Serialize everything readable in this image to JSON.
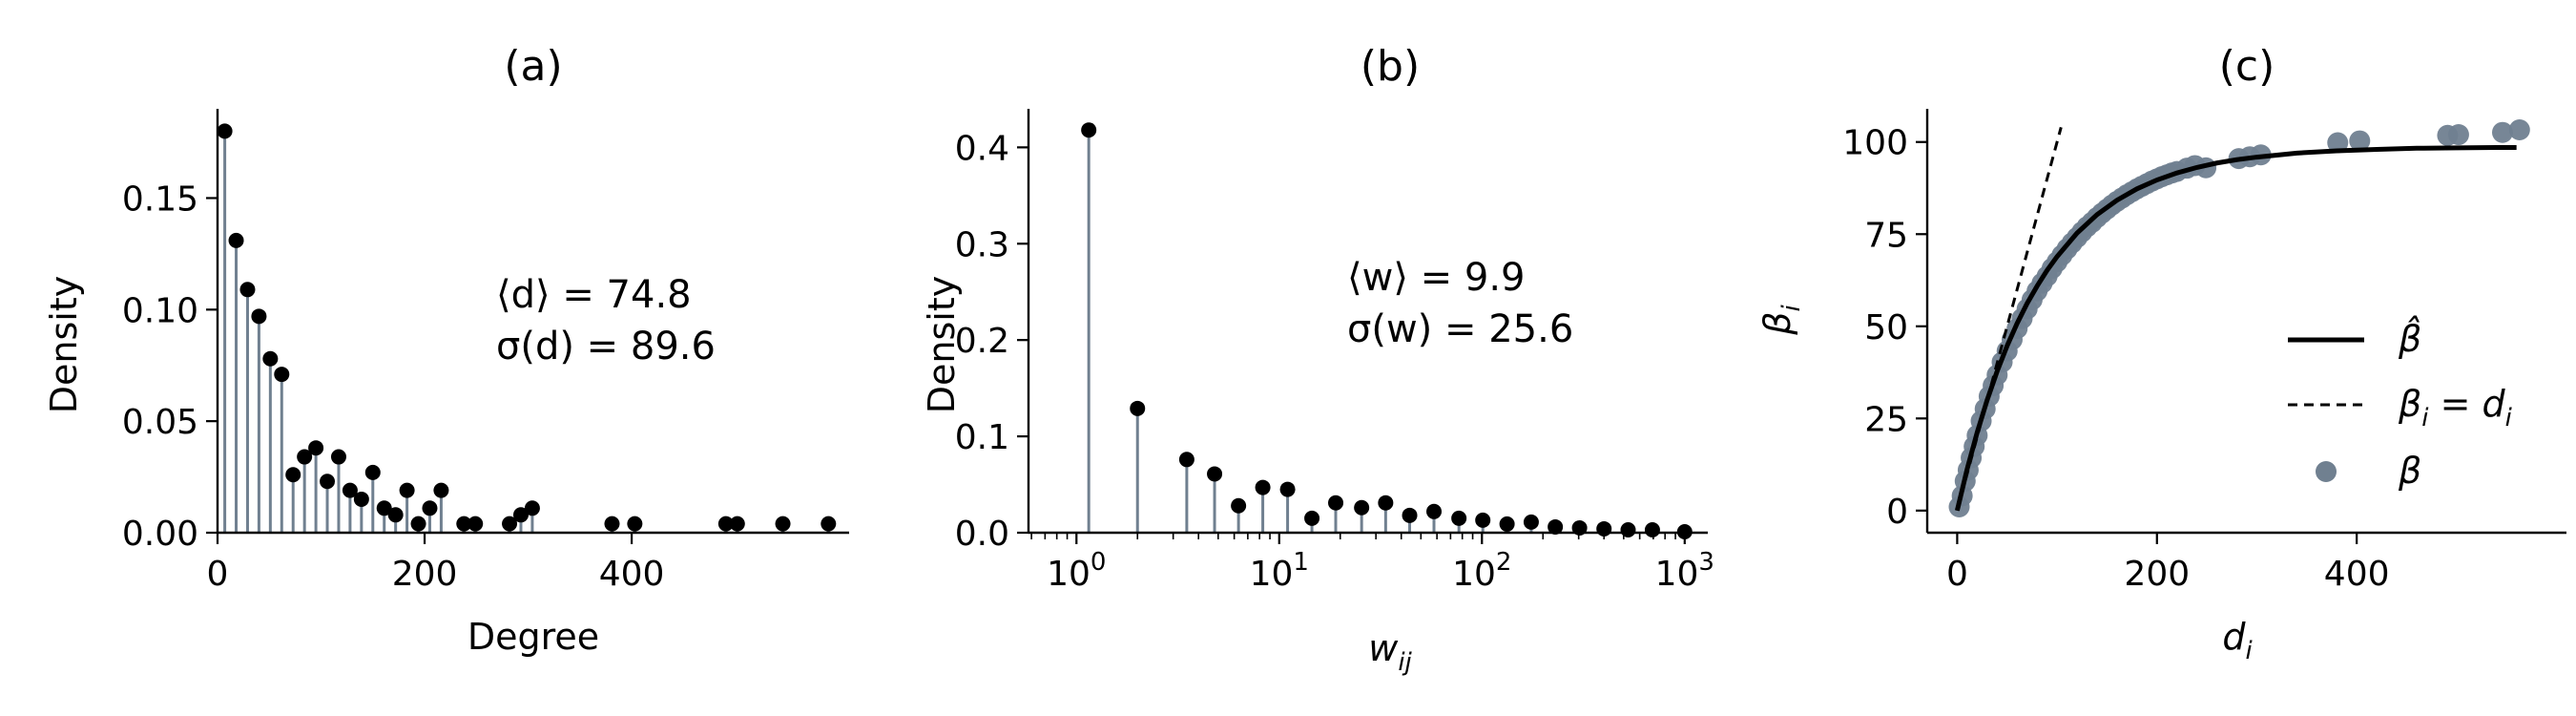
{
  "colors": {
    "stem": "#708090",
    "marker": "#000000",
    "scatter": "#708090",
    "fit_line": "#000000"
  },
  "chart_data": [
    {
      "type": "stem",
      "title": "(a)",
      "xlabel": "Degree",
      "ylabel": "Density",
      "xlim": [
        0,
        610
      ],
      "ylim": [
        0,
        0.19
      ],
      "xticks": [
        0,
        200,
        400
      ],
      "xtick_labels": [
        "0",
        "200",
        "400"
      ],
      "yticks": [
        0.0,
        0.05,
        0.1,
        0.15
      ],
      "ytick_labels": [
        "0.00",
        "0.05",
        "0.10",
        "0.15"
      ],
      "annotations": [
        "⟨d⟩ = 74.8",
        "σ(d) = 89.6"
      ],
      "x": [
        7,
        18,
        29,
        40,
        51,
        62,
        73,
        84,
        95,
        106,
        117,
        128,
        139,
        150,
        161,
        172,
        183,
        194,
        205,
        216,
        238,
        249,
        282,
        293,
        304,
        381,
        403,
        491,
        502,
        546,
        590
      ],
      "y": [
        0.18,
        0.131,
        0.109,
        0.097,
        0.078,
        0.071,
        0.026,
        0.034,
        0.038,
        0.023,
        0.034,
        0.019,
        0.015,
        0.027,
        0.011,
        0.008,
        0.019,
        0.004,
        0.011,
        0.019,
        0.004,
        0.004,
        0.004,
        0.008,
        0.011,
        0.004,
        0.004,
        0.004,
        0.004,
        0.004,
        0.004
      ]
    },
    {
      "type": "stem",
      "title": "(b)",
      "xlabel": "w_ij",
      "ylabel": "Density",
      "xscale": "log",
      "xlim": [
        0.58,
        1300
      ],
      "ylim": [
        0,
        0.44
      ],
      "xticks": [
        1,
        10,
        100,
        1000
      ],
      "xtick_labels": [
        "10^0",
        "10^1",
        "10^2",
        "10^3"
      ],
      "yticks": [
        0.0,
        0.1,
        0.2,
        0.3,
        0.4
      ],
      "ytick_labels": [
        "0.0",
        "0.1",
        "0.2",
        "0.3",
        "0.4"
      ],
      "annotations": [
        "⟨w⟩ = 9.9",
        "σ(w) = 25.6"
      ],
      "x": [
        1.15,
        2.0,
        3.5,
        4.8,
        6.3,
        8.3,
        11,
        14.5,
        19,
        25.5,
        33.5,
        44,
        58,
        77,
        101,
        133,
        175,
        230,
        303,
        400,
        526,
        693,
        1000
      ],
      "y": [
        0.418,
        0.129,
        0.076,
        0.061,
        0.028,
        0.047,
        0.045,
        0.015,
        0.031,
        0.026,
        0.031,
        0.018,
        0.022,
        0.015,
        0.013,
        0.009,
        0.011,
        0.006,
        0.005,
        0.004,
        0.003,
        0.003,
        0.001
      ]
    },
    {
      "type": "scatter",
      "title": "(c)",
      "xlabel": "d_i",
      "ylabel": "β_i",
      "xlim": [
        -30,
        610
      ],
      "ylim": [
        -6,
        109
      ],
      "xticks": [
        0,
        200,
        400
      ],
      "xtick_labels": [
        "0",
        "200",
        "400"
      ],
      "yticks": [
        0,
        25,
        50,
        75,
        100
      ],
      "ytick_labels": [
        "0",
        "25",
        "50",
        "75",
        "100"
      ],
      "series": [
        {
          "name": "β̂",
          "type": "line",
          "style": "solid",
          "x": [
            0,
            10,
            20,
            30,
            40,
            50,
            60,
            70,
            80,
            90,
            100,
            120,
            140,
            160,
            180,
            200,
            220,
            240,
            260,
            280,
            300,
            340,
            380,
            420,
            460,
            500,
            540,
            560
          ],
          "y": [
            0.0,
            11.3,
            21.2,
            30.0,
            37.8,
            44.7,
            50.8,
            56.2,
            60.9,
            65.2,
            68.9,
            75.3,
            80.3,
            84.2,
            87.3,
            89.7,
            91.6,
            93.1,
            94.3,
            95.2,
            95.9,
            97.0,
            97.6,
            98.0,
            98.3,
            98.4,
            98.5,
            98.5
          ]
        },
        {
          "name": "β_i = d_i",
          "type": "line",
          "style": "dashed",
          "x": [
            0,
            104
          ],
          "y": [
            0,
            104
          ]
        },
        {
          "name": "β",
          "type": "scatter",
          "x": [
            2,
            5,
            8,
            11,
            14,
            17,
            20,
            24,
            28,
            32,
            36,
            40,
            45,
            50,
            55,
            60,
            65,
            70,
            75,
            80,
            85,
            90,
            95,
            100,
            105,
            110,
            115,
            120,
            125,
            130,
            135,
            140,
            145,
            150,
            155,
            160,
            165,
            170,
            175,
            180,
            185,
            190,
            195,
            200,
            205,
            210,
            215,
            220,
            230,
            238,
            249,
            282,
            293,
            304,
            381,
            403,
            491,
            502,
            546,
            563
          ],
          "y": [
            1.0,
            4.0,
            8.0,
            11.0,
            14.3,
            17.4,
            20.4,
            24.3,
            27.6,
            31.0,
            33.9,
            36.8,
            40.3,
            43.3,
            46.4,
            49.4,
            52.1,
            54.7,
            57.2,
            59.6,
            61.7,
            63.6,
            65.7,
            67.5,
            69.3,
            71.0,
            72.6,
            74.1,
            75.6,
            77.0,
            78.2,
            79.5,
            80.7,
            81.8,
            82.9,
            83.9,
            84.8,
            85.7,
            86.5,
            87.3,
            88.0,
            88.7,
            89.4,
            90.0,
            90.6,
            91.1,
            91.6,
            92.0,
            92.9,
            93.6,
            93.0,
            95.5,
            96.0,
            96.5,
            99.8,
            100.3,
            101.8,
            102.0,
            102.6,
            103.3
          ]
        }
      ],
      "legend": {
        "position": "center-right",
        "entries": [
          "β̂",
          "β_i = d_i",
          "β"
        ]
      }
    }
  ]
}
